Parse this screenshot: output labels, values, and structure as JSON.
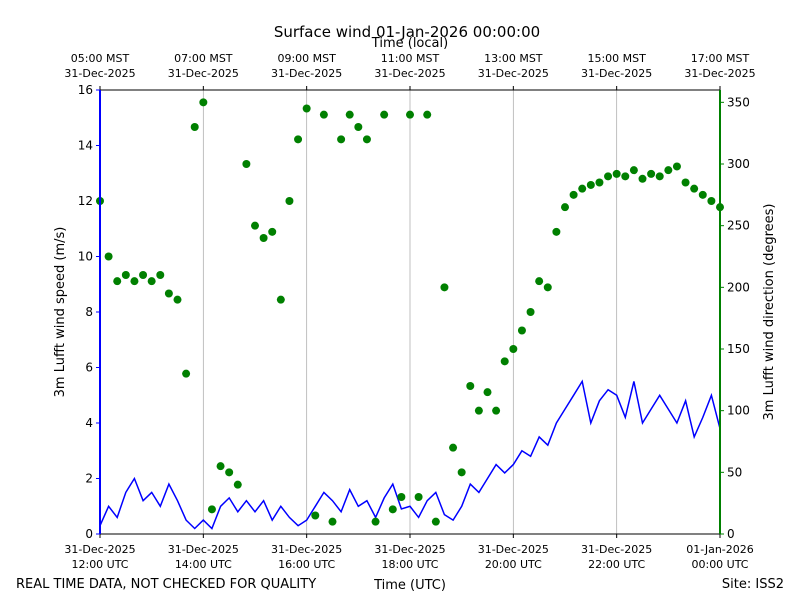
{
  "chart_data": {
    "type": "line",
    "title": "Surface wind 01-Jan-2026 00:00:00",
    "xlabel": "Time (UTC)",
    "x2label": "Time (local)",
    "ylabel": "3m Lufft wind speed (m/s)",
    "y2label": "3m Lufft wind direction (degrees)",
    "footer_left": "REAL TIME DATA, NOT CHECKED FOR QUALITY",
    "footer_right": "Site: ISS2",
    "grid": true,
    "xlim": [
      "2025-12-31T12:00",
      "2026-01-01T00:00"
    ],
    "xticks": [
      {
        "value": "2025-12-31T12:00",
        "label": [
          "31-Dec-2025",
          "12:00 UTC"
        ]
      },
      {
        "value": "2025-12-31T14:00",
        "label": [
          "31-Dec-2025",
          "14:00 UTC"
        ]
      },
      {
        "value": "2025-12-31T16:00",
        "label": [
          "31-Dec-2025",
          "16:00 UTC"
        ]
      },
      {
        "value": "2025-12-31T18:00",
        "label": [
          "31-Dec-2025",
          "18:00 UTC"
        ]
      },
      {
        "value": "2025-12-31T20:00",
        "label": [
          "31-Dec-2025",
          "20:00 UTC"
        ]
      },
      {
        "value": "2025-12-31T22:00",
        "label": [
          "31-Dec-2025",
          "22:00 UTC"
        ]
      },
      {
        "value": "2026-01-01T00:00",
        "label": [
          "01-Jan-2026",
          "00:00 UTC"
        ]
      }
    ],
    "x2ticks": [
      {
        "value": "2025-12-31T12:00",
        "label": [
          "05:00 MST",
          "31-Dec-2025"
        ]
      },
      {
        "value": "2025-12-31T14:00",
        "label": [
          "07:00 MST",
          "31-Dec-2025"
        ]
      },
      {
        "value": "2025-12-31T16:00",
        "label": [
          "09:00 MST",
          "31-Dec-2025"
        ]
      },
      {
        "value": "2025-12-31T18:00",
        "label": [
          "11:00 MST",
          "31-Dec-2025"
        ]
      },
      {
        "value": "2025-12-31T20:00",
        "label": [
          "13:00 MST",
          "31-Dec-2025"
        ]
      },
      {
        "value": "2025-12-31T22:00",
        "label": [
          "15:00 MST",
          "31-Dec-2025"
        ]
      },
      {
        "value": "2026-01-01T00:00",
        "label": [
          "17:00 MST",
          "31-Dec-2025"
        ]
      }
    ],
    "ylim": [
      0,
      16
    ],
    "yticks": [
      0,
      2,
      4,
      6,
      8,
      10,
      12,
      14,
      16
    ],
    "y2lim": [
      0,
      360
    ],
    "y2ticks": [
      0,
      50,
      100,
      150,
      200,
      250,
      300,
      350
    ],
    "y_color": "#0000ff",
    "y2_color": "#008000",
    "x": [
      "2025-12-31T12:00",
      "2025-12-31T12:10",
      "2025-12-31T12:20",
      "2025-12-31T12:30",
      "2025-12-31T12:40",
      "2025-12-31T12:50",
      "2025-12-31T13:00",
      "2025-12-31T13:10",
      "2025-12-31T13:20",
      "2025-12-31T13:30",
      "2025-12-31T13:40",
      "2025-12-31T13:50",
      "2025-12-31T14:00",
      "2025-12-31T14:10",
      "2025-12-31T14:20",
      "2025-12-31T14:30",
      "2025-12-31T14:40",
      "2025-12-31T14:50",
      "2025-12-31T15:00",
      "2025-12-31T15:10",
      "2025-12-31T15:20",
      "2025-12-31T15:30",
      "2025-12-31T15:40",
      "2025-12-31T15:50",
      "2025-12-31T16:00",
      "2025-12-31T16:10",
      "2025-12-31T16:20",
      "2025-12-31T16:30",
      "2025-12-31T16:40",
      "2025-12-31T16:50",
      "2025-12-31T17:00",
      "2025-12-31T17:10",
      "2025-12-31T17:20",
      "2025-12-31T17:30",
      "2025-12-31T17:40",
      "2025-12-31T17:50",
      "2025-12-31T18:00",
      "2025-12-31T18:10",
      "2025-12-31T18:20",
      "2025-12-31T18:30",
      "2025-12-31T18:40",
      "2025-12-31T18:50",
      "2025-12-31T19:00",
      "2025-12-31T19:10",
      "2025-12-31T19:20",
      "2025-12-31T19:30",
      "2025-12-31T19:40",
      "2025-12-31T19:50",
      "2025-12-31T20:00",
      "2025-12-31T20:10",
      "2025-12-31T20:20",
      "2025-12-31T20:30",
      "2025-12-31T20:40",
      "2025-12-31T20:50",
      "2025-12-31T21:00",
      "2025-12-31T21:10",
      "2025-12-31T21:20",
      "2025-12-31T21:30",
      "2025-12-31T21:40",
      "2025-12-31T21:50",
      "2025-12-31T22:00",
      "2025-12-31T22:10",
      "2025-12-31T22:20",
      "2025-12-31T22:30",
      "2025-12-31T22:40",
      "2025-12-31T22:50",
      "2025-12-31T23:00",
      "2025-12-31T23:10",
      "2025-12-31T23:20",
      "2025-12-31T23:30",
      "2025-12-31T23:40",
      "2025-12-31T23:50",
      "2026-01-01T00:00"
    ],
    "series": [
      {
        "type": "line",
        "color": "#0000ff",
        "values": [
          0.3,
          1.0,
          0.6,
          1.5,
          2.0,
          1.2,
          1.5,
          1.0,
          1.8,
          1.2,
          0.5,
          0.2,
          0.5,
          0.2,
          1.0,
          1.3,
          0.8,
          1.2,
          0.8,
          1.2,
          0.5,
          1.0,
          0.6,
          0.3,
          0.5,
          1.0,
          1.5,
          1.2,
          0.8,
          1.6,
          1.0,
          1.2,
          0.6,
          1.3,
          1.8,
          0.9,
          1.0,
          0.6,
          1.2,
          1.5,
          0.7,
          0.5,
          1.0,
          1.8,
          1.5,
          2.0,
          2.5,
          2.2,
          2.5,
          3.0,
          2.8,
          3.5,
          3.2,
          4.0,
          4.5,
          5.0,
          5.5,
          4.0,
          4.8,
          5.2,
          5.0,
          4.2,
          5.5,
          4.0,
          4.5,
          5.0,
          4.5,
          4.0,
          4.8,
          3.5,
          4.2,
          5.0,
          3.8
        ]
      },
      {
        "type": "scatter",
        "color": "#008000",
        "axis": "y2",
        "values": [
          270,
          225,
          205,
          210,
          205,
          210,
          205,
          210,
          195,
          190,
          130,
          330,
          350,
          20,
          55,
          50,
          40,
          300,
          250,
          240,
          245,
          190,
          270,
          320,
          345,
          15,
          340,
          10,
          320,
          340,
          330,
          320,
          10,
          340,
          20,
          30,
          340,
          30,
          340,
          10,
          200,
          70,
          50,
          120,
          100,
          115,
          100,
          140,
          150,
          165,
          180,
          205,
          200,
          245,
          265,
          275,
          280,
          283,
          285,
          290,
          292,
          290,
          295,
          288,
          292,
          290,
          295,
          298,
          285,
          280,
          275,
          270,
          265
        ]
      }
    ]
  }
}
